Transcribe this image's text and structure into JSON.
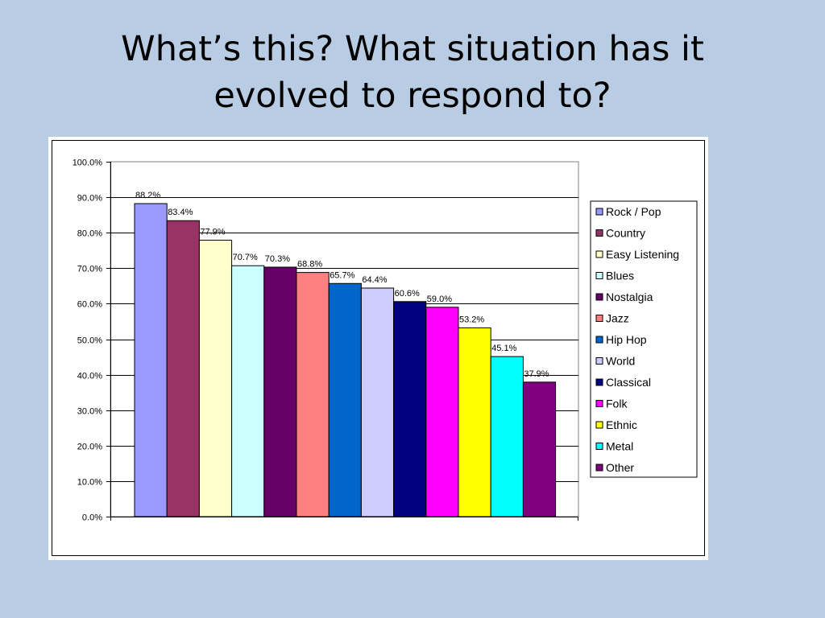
{
  "slide": {
    "title_line1": "What’s this? What situation has it",
    "title_line2": "evolved to respond to?"
  },
  "chart_data": {
    "type": "bar",
    "categories": [
      "Rock / Pop",
      "Country",
      "Easy Listening",
      "Blues",
      "Nostalgia",
      "Jazz",
      "Hip Hop",
      "World",
      "Classical",
      "Folk",
      "Ethnic",
      "Metal",
      "Other"
    ],
    "values": [
      88.2,
      83.4,
      77.9,
      70.7,
      70.3,
      68.8,
      65.7,
      64.4,
      60.6,
      59.0,
      53.2,
      45.1,
      37.9
    ],
    "data_labels": [
      "88.2%",
      "83.4%",
      "77.9%",
      "70.7%",
      "70.3%",
      "68.8%",
      "65.7%",
      "64.4%",
      "60.6%",
      "59.0%",
      "53.2%",
      "45.1%",
      "37.9%"
    ],
    "colors": [
      "#9999ff",
      "#993366",
      "#ffffcc",
      "#ccffff",
      "#660066",
      "#ff8080",
      "#0066cc",
      "#ccccff",
      "#000080",
      "#ff00ff",
      "#ffff00",
      "#00ffff",
      "#800080"
    ],
    "ylim": [
      0,
      100
    ],
    "yticks": [
      0,
      10,
      20,
      30,
      40,
      50,
      60,
      70,
      80,
      90,
      100
    ],
    "ytick_labels": [
      "0.0%",
      "10.0%",
      "20.0%",
      "30.0%",
      "40.0%",
      "50.0%",
      "60.0%",
      "70.0%",
      "80.0%",
      "90.0%",
      "100.0%"
    ],
    "grid": true,
    "legend": "right",
    "xlabel": "",
    "ylabel": "",
    "title": ""
  }
}
